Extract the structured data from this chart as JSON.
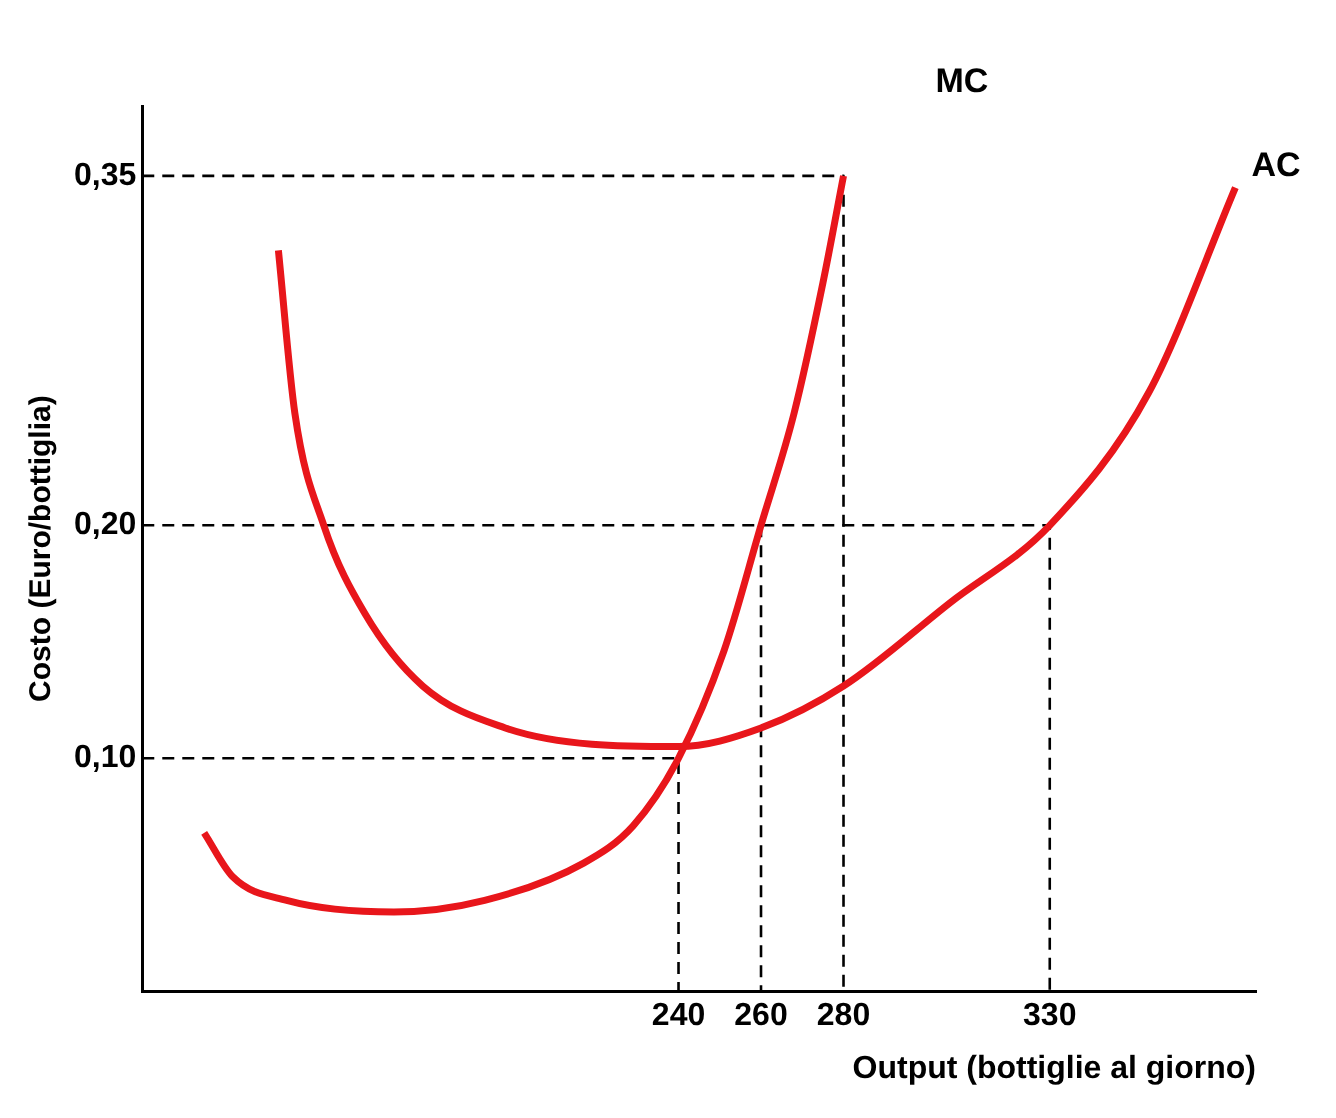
{
  "chart_data": {
    "type": "line",
    "xlabel": "Output (bottiglie al giorno)",
    "ylabel": "Costo (Euro/bottiglia)",
    "xlim": [
      110,
      380
    ],
    "ylim": [
      0,
      0.38
    ],
    "xticks": [
      240,
      260,
      280,
      330
    ],
    "yticks": [
      {
        "value": 0.1,
        "label": "0,10"
      },
      {
        "value": 0.2,
        "label": "0,20"
      },
      {
        "value": 0.35,
        "label": "0,35"
      }
    ],
    "grid": false,
    "legend": false,
    "marker": "none",
    "series": [
      {
        "name": "MC",
        "color": "#e8161b",
        "x": [
          125,
          132,
          145,
          171,
          193,
          217,
          229,
          240,
          251,
          260,
          268,
          275,
          280
        ],
        "values": [
          0.068,
          0.049,
          0.039,
          0.034,
          0.039,
          0.055,
          0.071,
          0.1,
          0.146,
          0.2,
          0.248,
          0.304,
          0.35
        ]
      },
      {
        "name": "AC",
        "color": "#e8161b",
        "x": [
          143,
          147,
          154,
          164,
          178,
          198,
          219,
          240,
          260,
          280,
          306,
          330,
          354,
          375
        ],
        "values": [
          0.318,
          0.248,
          0.2,
          0.162,
          0.131,
          0.113,
          0.106,
          0.105,
          0.113,
          0.131,
          0.167,
          0.2,
          0.257,
          0.345
        ]
      },
      {
        "color": "#000000",
        "line_style": "dashed",
        "x": [
          110,
          280,
          280
        ],
        "values": [
          0.35,
          0.35,
          0
        ]
      },
      {
        "color": "#000000",
        "line_style": "dashed",
        "x": [
          110,
          330,
          330
        ],
        "values": [
          0.2,
          0.2,
          0
        ]
      },
      {
        "color": "#000000",
        "line_style": "dashed",
        "x": [
          110,
          240,
          240
        ],
        "values": [
          0.1,
          0.1,
          0
        ]
      },
      {
        "color": "#000000",
        "line_style": "dashed",
        "x": [
          260,
          260
        ],
        "values": [
          0.2,
          0
        ]
      }
    ]
  }
}
